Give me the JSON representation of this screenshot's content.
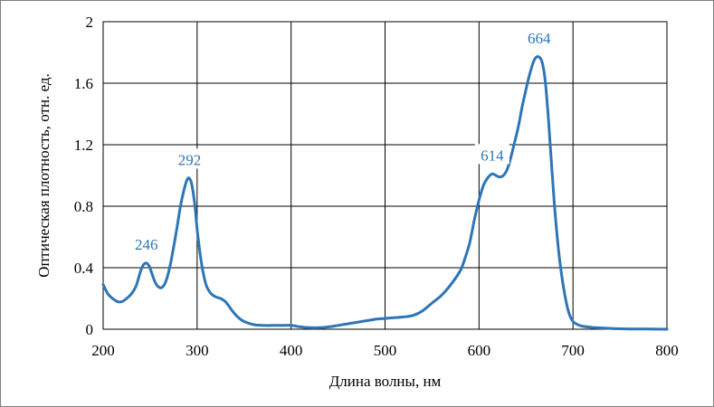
{
  "chart_data": {
    "type": "line",
    "xlabel": "Длина волны, нм",
    "ylabel": "Оптическая плотность, отн. ед.",
    "xlim": [
      200,
      800
    ],
    "ylim": [
      0,
      2
    ],
    "xticks": [
      200,
      300,
      400,
      500,
      600,
      700,
      800
    ],
    "yticks": [
      "0",
      "0.4",
      "0.8",
      "1.2",
      "1.6",
      "2"
    ],
    "grid": true,
    "line_color": "#2e75b6",
    "series": [
      {
        "x": [
          200,
          205,
          210,
          215,
          220,
          225,
          230,
          235,
          240,
          243,
          246,
          249,
          252,
          255,
          258,
          262,
          266,
          270,
          274,
          278,
          282,
          285,
          288,
          290,
          292,
          294,
          296,
          298,
          300,
          303,
          306,
          310,
          315,
          320,
          325,
          330,
          335,
          340,
          345,
          350,
          360,
          370,
          380,
          390,
          400,
          410,
          420,
          430,
          440,
          450,
          460,
          470,
          480,
          490,
          500,
          510,
          520,
          530,
          540,
          550,
          560,
          570,
          580,
          585,
          590,
          595,
          600,
          605,
          610,
          614,
          618,
          622,
          626,
          630,
          634,
          638,
          642,
          646,
          650,
          654,
          658,
          661,
          664,
          667,
          670,
          673,
          676,
          680,
          684,
          688,
          692,
          696,
          700,
          705,
          710,
          720,
          730,
          740,
          750,
          760,
          780,
          800
        ],
        "y": [
          0.29,
          0.23,
          0.2,
          0.18,
          0.18,
          0.2,
          0.23,
          0.28,
          0.38,
          0.42,
          0.43,
          0.41,
          0.36,
          0.31,
          0.28,
          0.27,
          0.3,
          0.38,
          0.5,
          0.64,
          0.79,
          0.88,
          0.95,
          0.98,
          0.98,
          0.95,
          0.88,
          0.78,
          0.65,
          0.5,
          0.38,
          0.28,
          0.23,
          0.21,
          0.2,
          0.18,
          0.14,
          0.1,
          0.07,
          0.05,
          0.03,
          0.025,
          0.025,
          0.025,
          0.025,
          0.015,
          0.01,
          0.01,
          0.015,
          0.025,
          0.035,
          0.045,
          0.055,
          0.065,
          0.07,
          0.075,
          0.08,
          0.09,
          0.12,
          0.17,
          0.22,
          0.29,
          0.38,
          0.46,
          0.56,
          0.71,
          0.84,
          0.94,
          0.99,
          1.01,
          1.0,
          0.99,
          1.0,
          1.04,
          1.12,
          1.22,
          1.32,
          1.45,
          1.56,
          1.66,
          1.74,
          1.77,
          1.77,
          1.74,
          1.64,
          1.44,
          1.18,
          0.83,
          0.55,
          0.35,
          0.2,
          0.1,
          0.05,
          0.03,
          0.02,
          0.012,
          0.008,
          0.005,
          0.003,
          0.002,
          0.001,
          0.0
        ]
      }
    ],
    "annotations": [
      {
        "text": "246",
        "x": 246,
        "y": 0.43
      },
      {
        "text": "292",
        "x": 292,
        "y": 0.98
      },
      {
        "text": "614",
        "x": 614,
        "y": 1.01
      },
      {
        "text": "664",
        "x": 664,
        "y": 1.77
      }
    ]
  }
}
